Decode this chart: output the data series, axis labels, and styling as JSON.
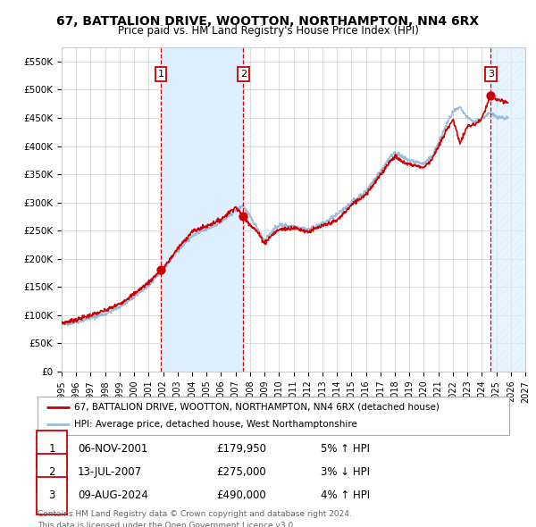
{
  "title": "67, BATTALION DRIVE, WOOTTON, NORTHAMPTON, NN4 6RX",
  "subtitle": "Price paid vs. HM Land Registry's House Price Index (HPI)",
  "legend_line1": "67, BATTALION DRIVE, WOOTTON, NORTHAMPTON, NN4 6RX (detached house)",
  "legend_line2": "HPI: Average price, detached house, West Northamptonshire",
  "footer1": "Contains HM Land Registry data © Crown copyright and database right 2024.",
  "footer2": "This data is licensed under the Open Government Licence v3.0.",
  "transactions": [
    {
      "num": 1,
      "date": "06-NOV-2001",
      "price": 179950,
      "price_str": "£179,950",
      "hpi_pct": "5%",
      "hpi_dir": "↑"
    },
    {
      "num": 2,
      "date": "13-JUL-2007",
      "price": 275000,
      "price_str": "£275,000",
      "hpi_pct": "3%",
      "hpi_dir": "↓"
    },
    {
      "num": 3,
      "date": "09-AUG-2024",
      "price": 490000,
      "price_str": "£490,000",
      "hpi_pct": "4%",
      "hpi_dir": "↑"
    }
  ],
  "transaction_years": [
    2001.85,
    2007.53,
    2024.61
  ],
  "transaction_prices": [
    179950,
    275000,
    490000
  ],
  "xmin": 1995.0,
  "xmax": 2027.0,
  "ymin": 0,
  "ymax": 575000,
  "yticks": [
    0,
    50000,
    100000,
    150000,
    200000,
    250000,
    300000,
    350000,
    400000,
    450000,
    500000,
    550000
  ],
  "ytick_labels": [
    "£0",
    "£50K",
    "£100K",
    "£150K",
    "£200K",
    "£250K",
    "£300K",
    "£350K",
    "£400K",
    "£450K",
    "£500K",
    "£550K"
  ],
  "bg_color": "#ffffff",
  "plot_bg_color": "#ffffff",
  "grid_color": "#cccccc",
  "red_line_color": "#cc0000",
  "blue_line_color": "#99bbdd",
  "shade_color": "#ddeeff",
  "hatch_color": "#bbccdd",
  "transaction_box_color": "#cc0000",
  "dashed_line_color": "#cc0000"
}
